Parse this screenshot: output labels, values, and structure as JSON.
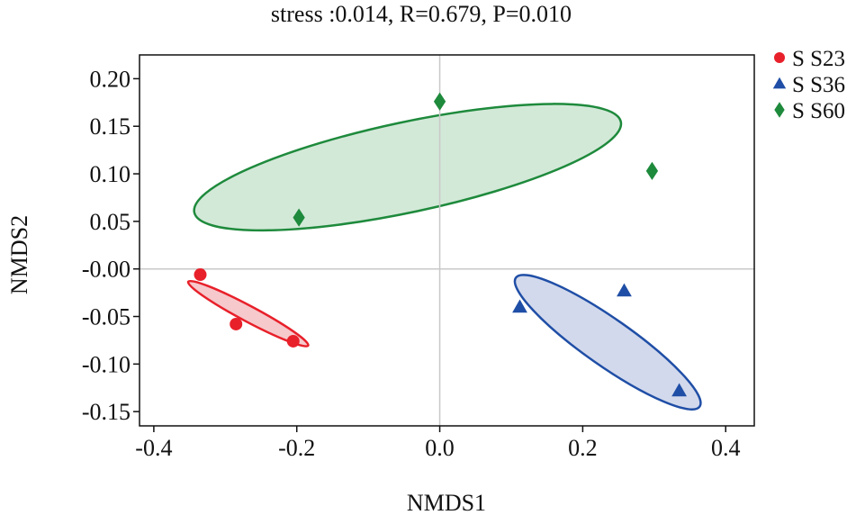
{
  "chart_data": {
    "type": "scatter",
    "title": "stress :0.014, R=0.679, P=0.010",
    "xlabel": "NMDS1",
    "ylabel": "NMDS2",
    "xlim": [
      -0.42,
      0.44
    ],
    "ylim": [
      -0.165,
      0.225
    ],
    "x_ticks": [
      -0.4,
      -0.2,
      0.0,
      0.2,
      0.4
    ],
    "x_tick_labels": [
      "-0.4",
      "-0.2",
      "0.0",
      "0.2",
      "0.4"
    ],
    "y_ticks": [
      0.2,
      0.15,
      0.1,
      0.05,
      0.0,
      -0.05,
      -0.1,
      -0.15
    ],
    "y_tick_labels": [
      "0.20",
      "0.15",
      "0.10",
      "0.05",
      "-0.00",
      "-0.05",
      "-0.10",
      "-0.15"
    ],
    "reference_lines": {
      "x": 0,
      "y": 0
    },
    "legend_position": "top-right",
    "series": [
      {
        "name": "S S23",
        "marker": "circle",
        "color": "#e8202a",
        "fill": "#f6c9cc",
        "points": [
          {
            "x": -0.335,
            "y": -0.006
          },
          {
            "x": -0.285,
            "y": -0.058
          },
          {
            "x": -0.205,
            "y": -0.076
          }
        ],
        "ellipse": {
          "cx": -0.268,
          "cy": -0.047,
          "rx": 0.095,
          "ry": 0.011,
          "angle_deg": -28
        }
      },
      {
        "name": "S S36",
        "marker": "triangle",
        "color": "#1f4ea6",
        "fill": "#d2d9ec",
        "points": [
          {
            "x": 0.112,
            "y": -0.04
          },
          {
            "x": 0.258,
            "y": -0.023
          },
          {
            "x": 0.335,
            "y": -0.128
          }
        ],
        "ellipse": {
          "cx": 0.235,
          "cy": -0.077,
          "rx": 0.157,
          "ry": 0.033,
          "angle_deg": -35
        }
      },
      {
        "name": "S S60",
        "marker": "diamond",
        "color": "#1e8a3c",
        "fill": "#d3e9d8",
        "points": [
          {
            "x": -0.197,
            "y": 0.054
          },
          {
            "x": 0.0,
            "y": 0.176
          },
          {
            "x": 0.297,
            "y": 0.103
          }
        ],
        "ellipse": {
          "cx": -0.045,
          "cy": 0.107,
          "rx": 0.305,
          "ry": 0.063,
          "angle_deg": 12
        }
      }
    ]
  }
}
